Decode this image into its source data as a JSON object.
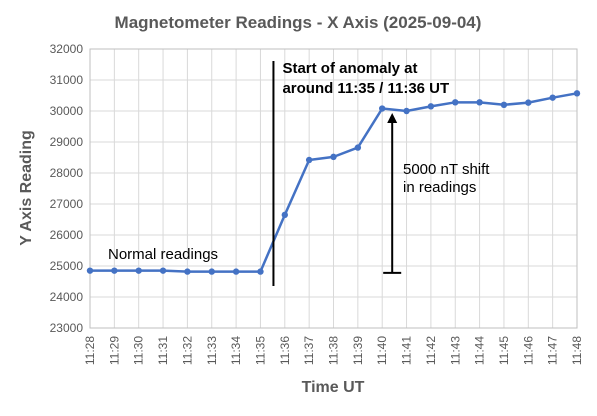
{
  "chart_data": {
    "type": "line",
    "title": "Magnetometer Readings - X Axis (2025-09-04)",
    "xlabel": "Time UT",
    "ylabel": "Y Axis Reading",
    "categories": [
      "11:28",
      "11:29",
      "11:30",
      "11:31",
      "11:32",
      "11:33",
      "11:34",
      "11:35",
      "11:36",
      "11:37",
      "11:38",
      "11:39",
      "11:40",
      "11:41",
      "11:42",
      "11:43",
      "11:44",
      "11:45",
      "11:46",
      "11:47",
      "11:48"
    ],
    "yticks": [
      "23000",
      "24000",
      "25000",
      "26000",
      "27000",
      "28000",
      "29000",
      "30000",
      "31000",
      "32000"
    ],
    "ylim": [
      23000,
      32000
    ],
    "grid": true,
    "series": [
      {
        "values": [
          24850,
          24850,
          24850,
          24850,
          24820,
          24820,
          24820,
          24820,
          26650,
          28420,
          28520,
          28820,
          30080,
          30000,
          30150,
          30280,
          30280,
          30200,
          30270,
          30430,
          30570
        ],
        "color": "#4472c4"
      }
    ],
    "annotations": [
      {
        "lines": [
          "Start of anomaly at",
          "around  11:35 / 11:36 UT"
        ],
        "bold": true
      },
      {
        "lines": [
          "5000 nT shift",
          "in readings"
        ],
        "bold": false
      },
      {
        "lines": [
          "Normal readings"
        ],
        "bold": false
      }
    ]
  }
}
